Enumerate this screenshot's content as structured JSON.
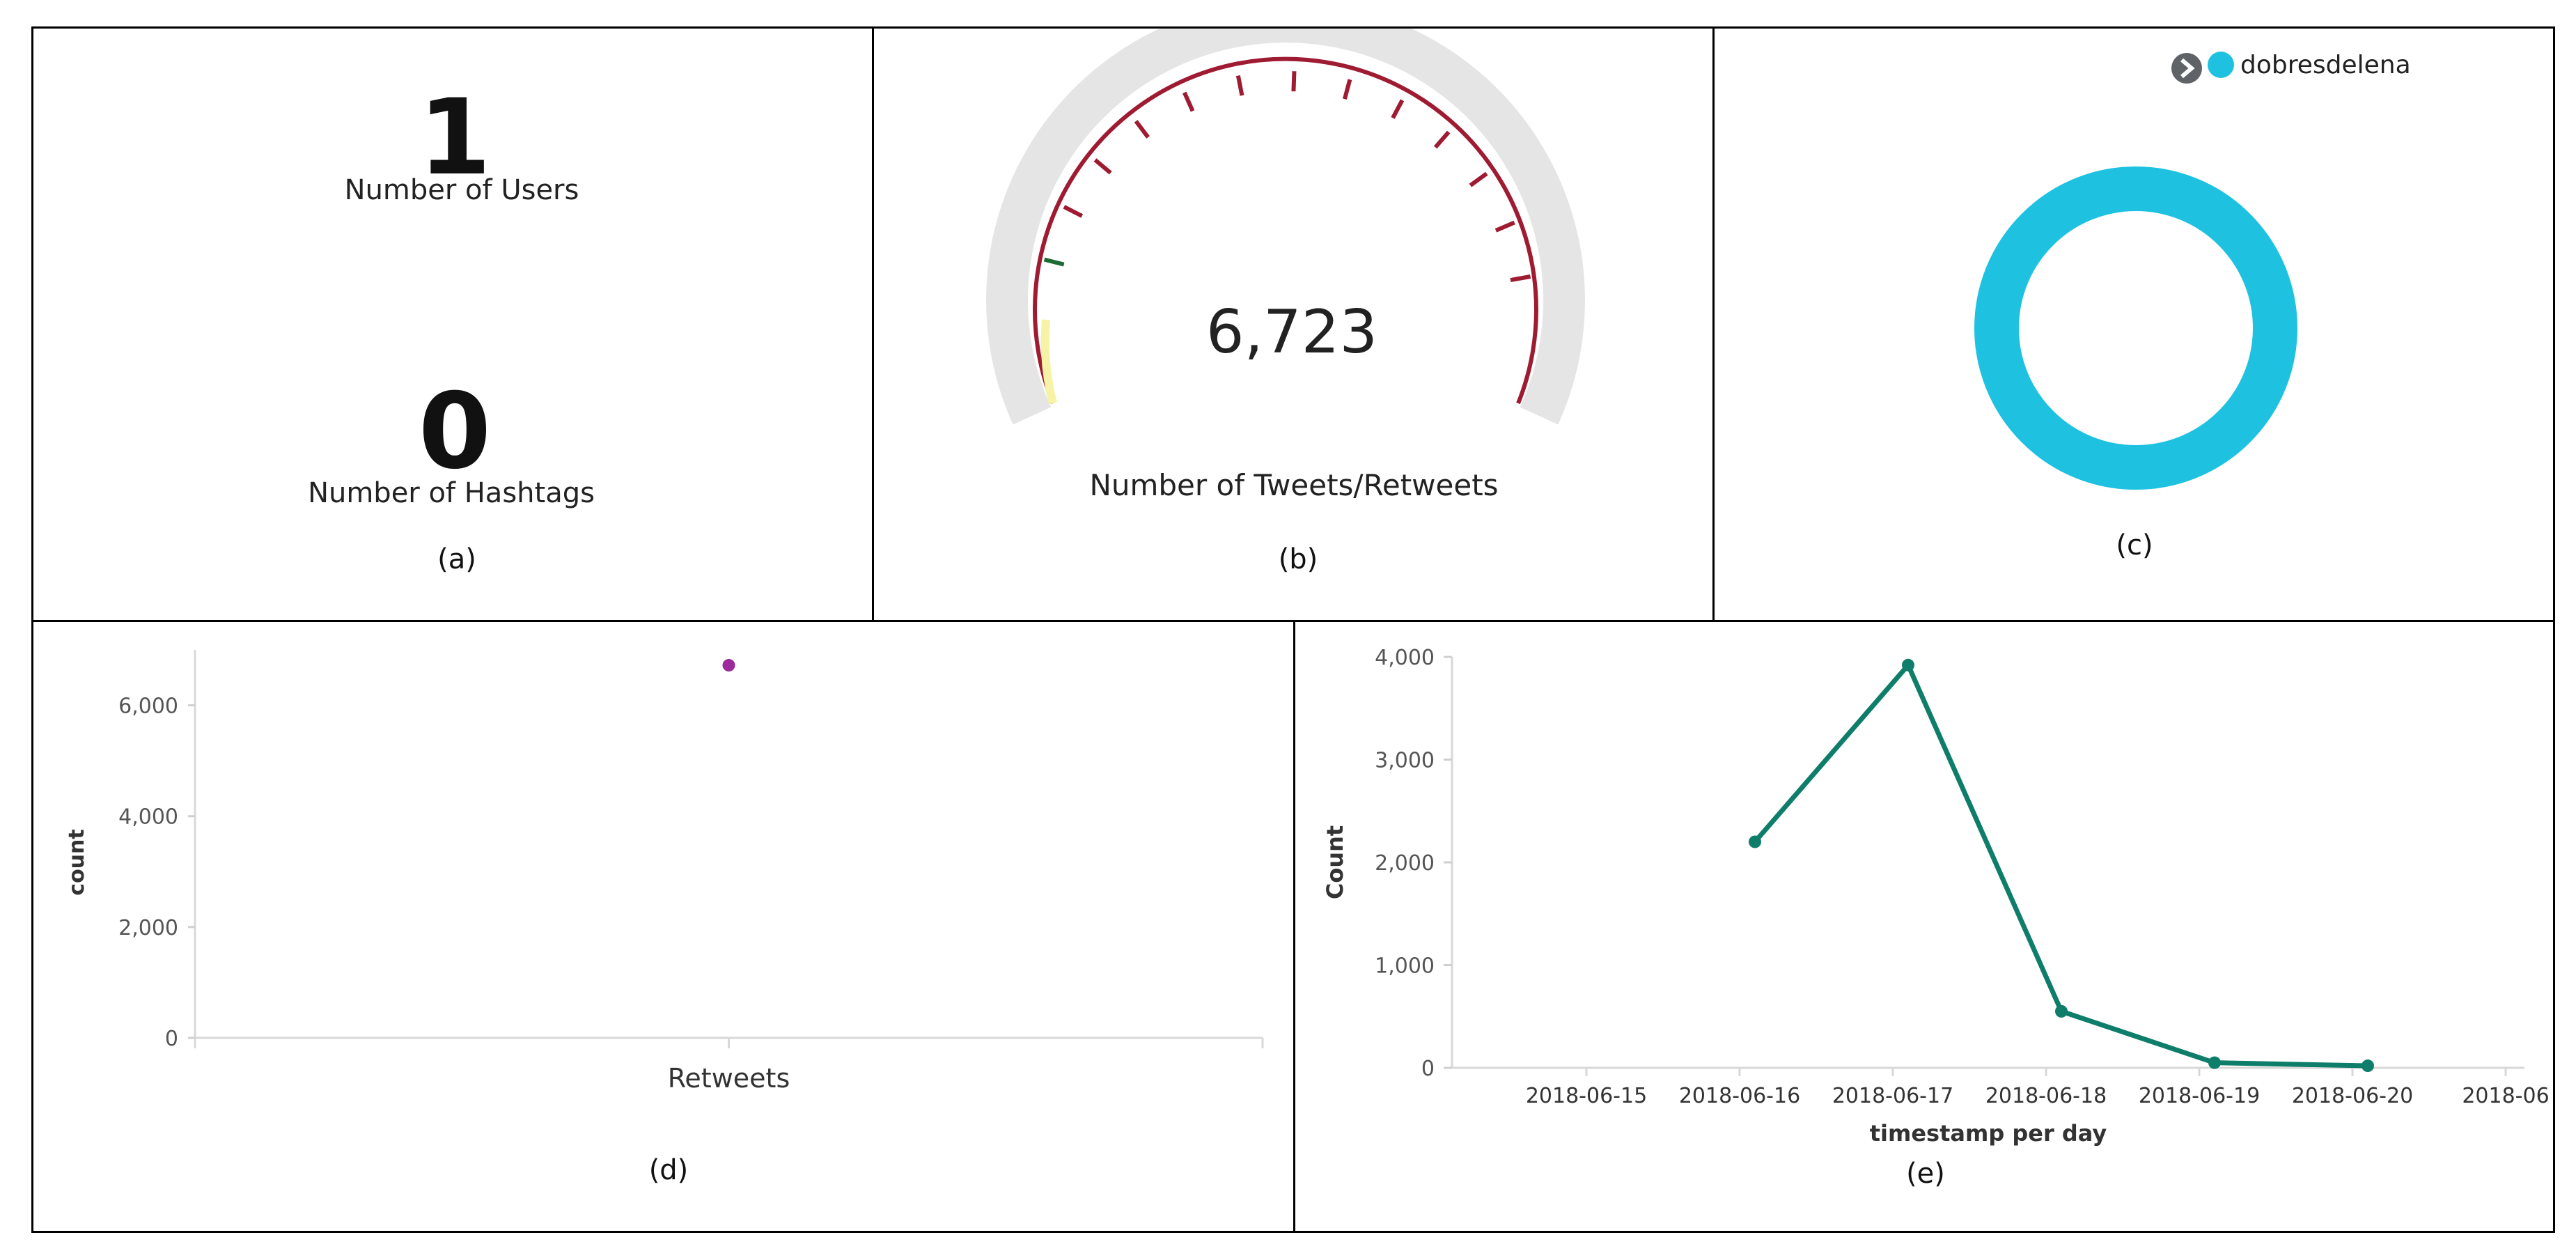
{
  "panel_a": {
    "users_value": "1",
    "users_label": "Number of Users",
    "hashtags_value": "0",
    "hashtags_label": "Number of Hashtags",
    "caption": "(a)"
  },
  "panel_b": {
    "value_text": "6,723",
    "label": "Number of Tweets/Retweets",
    "caption": "(b)"
  },
  "panel_c": {
    "legend_label": "dobresdelena",
    "slice_color": "#1ec2e0",
    "caption": "(c)"
  },
  "panel_d": {
    "caption": "(d)"
  },
  "panel_e": {
    "caption": "(e)"
  },
  "chart_data": [
    {
      "type": "scatter",
      "categories": [
        "Retweets"
      ],
      "values": [
        6723
      ],
      "ylabel": "count",
      "xlabel": "",
      "y_ticks": [
        "0",
        "2,000",
        "4,000",
        "6,000"
      ],
      "ylim": [
        0,
        7000
      ],
      "color": "#9b2a9b"
    },
    {
      "type": "line",
      "x": [
        "2018-06-16",
        "2018-06-17",
        "2018-06-18",
        "2018-06-19",
        "2018-06-20"
      ],
      "y": [
        2200,
        3920,
        550,
        50,
        20
      ],
      "x_ticks": [
        "2018-06-15",
        "2018-06-16",
        "2018-06-17",
        "2018-06-18",
        "2018-06-19",
        "2018-06-20",
        "2018-06"
      ],
      "y_ticks": [
        "0",
        "1,000",
        "2,000",
        "3,000",
        "4,000"
      ],
      "ylim": [
        0,
        4000
      ],
      "xlabel": "timestamp per day",
      "ylabel": "Count",
      "color": "#0e7d6a"
    }
  ]
}
